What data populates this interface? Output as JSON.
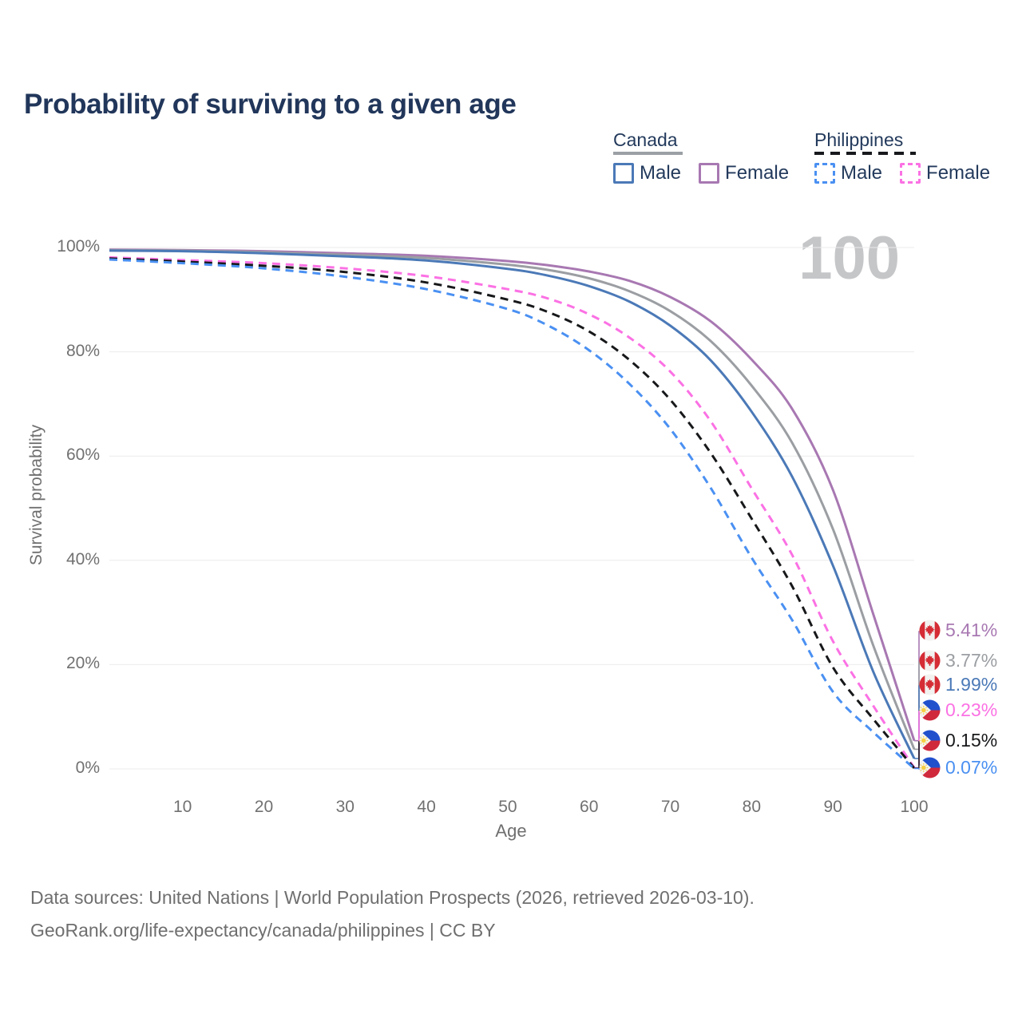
{
  "title": "Probability of surviving to a given age",
  "watermark": "100",
  "legend": {
    "canada": {
      "label": "Canada",
      "male": "Male",
      "female": "Female",
      "male_color": "#4b79b7",
      "female_color": "#a878b2",
      "rule_color": "#9ba0a5"
    },
    "philippines": {
      "label": "Philippines",
      "male": "Male",
      "female": "Female",
      "male_color": "#4a90f2",
      "female_color": "#fb71e4",
      "rule_color": "#17191c"
    }
  },
  "chart_data": {
    "type": "line",
    "title": "Probability of surviving to a given age",
    "xlabel": "Age",
    "ylabel": "Survival probability",
    "xlim": [
      1,
      100
    ],
    "ylim": [
      0,
      100
    ],
    "grid": "horizontal",
    "x_ticks": [
      10,
      20,
      30,
      40,
      50,
      60,
      70,
      80,
      90,
      100
    ],
    "y_ticks": [
      {
        "value": 0,
        "label": "0%"
      },
      {
        "value": 20,
        "label": "20%"
      },
      {
        "value": 40,
        "label": "40%"
      },
      {
        "value": 60,
        "label": "60%"
      },
      {
        "value": 80,
        "label": "80%"
      },
      {
        "value": 100,
        "label": "100%"
      }
    ],
    "ages": [
      1,
      10,
      20,
      30,
      40,
      50,
      55,
      60,
      65,
      70,
      75,
      80,
      85,
      90,
      95,
      100
    ],
    "series": [
      {
        "id": "canada-female",
        "flag": "canada",
        "color": "#a878b2",
        "dashed": false,
        "end_label": "5.41%",
        "values": [
          99.6,
          99.5,
          99.3,
          98.9,
          98.4,
          97.4,
          96.6,
          95.4,
          93.6,
          90.5,
          85.8,
          78.5,
          69.0,
          53.5,
          29.5,
          5.41
        ]
      },
      {
        "id": "canada-both",
        "flag": "canada",
        "color": "#9b9ea2",
        "dashed": false,
        "end_label": "3.77%",
        "values": [
          99.5,
          99.4,
          99.1,
          98.6,
          98.0,
          96.7,
          95.7,
          94.1,
          91.6,
          87.8,
          82.0,
          73.5,
          62.5,
          46.0,
          23.5,
          3.77
        ]
      },
      {
        "id": "canada-male",
        "flag": "canada",
        "color": "#4b79b7",
        "dashed": false,
        "end_label": "1.99%",
        "values": [
          99.4,
          99.3,
          98.9,
          98.3,
          97.5,
          95.9,
          94.6,
          92.6,
          89.6,
          85.0,
          78.3,
          68.5,
          56.0,
          39.0,
          18.5,
          1.99
        ]
      },
      {
        "id": "philippines-female",
        "flag": "philippines",
        "color": "#fb71e4",
        "dashed": true,
        "end_label": "0.23%",
        "values": [
          98.1,
          97.6,
          97.0,
          96.0,
          94.5,
          92.0,
          90.2,
          87.2,
          82.7,
          76.2,
          66.6,
          53.8,
          41.0,
          24.5,
          12.0,
          0.23
        ]
      },
      {
        "id": "philippines-both",
        "flag": "philippines",
        "color": "#17181a",
        "dashed": true,
        "end_label": "0.15%",
        "values": [
          97.9,
          97.3,
          96.5,
          95.3,
          93.3,
          90.0,
          87.6,
          83.9,
          78.4,
          70.8,
          60.5,
          48.0,
          35.0,
          19.5,
          9.5,
          0.15
        ]
      },
      {
        "id": "philippines-male",
        "flag": "philippines",
        "color": "#4a90f2",
        "dashed": true,
        "end_label": "0.07%",
        "values": [
          97.7,
          97.0,
          96.0,
          94.4,
          92.0,
          88.2,
          85.0,
          80.3,
          73.8,
          65.2,
          53.8,
          40.5,
          28.5,
          14.8,
          7.0,
          0.07
        ]
      }
    ]
  },
  "footer": {
    "line1": "Data sources: United Nations | World Population Prospects (2026, retrieved 2026-03-10).",
    "line2": "GeoRank.org/life-expectancy/canada/philippines | CC BY"
  }
}
